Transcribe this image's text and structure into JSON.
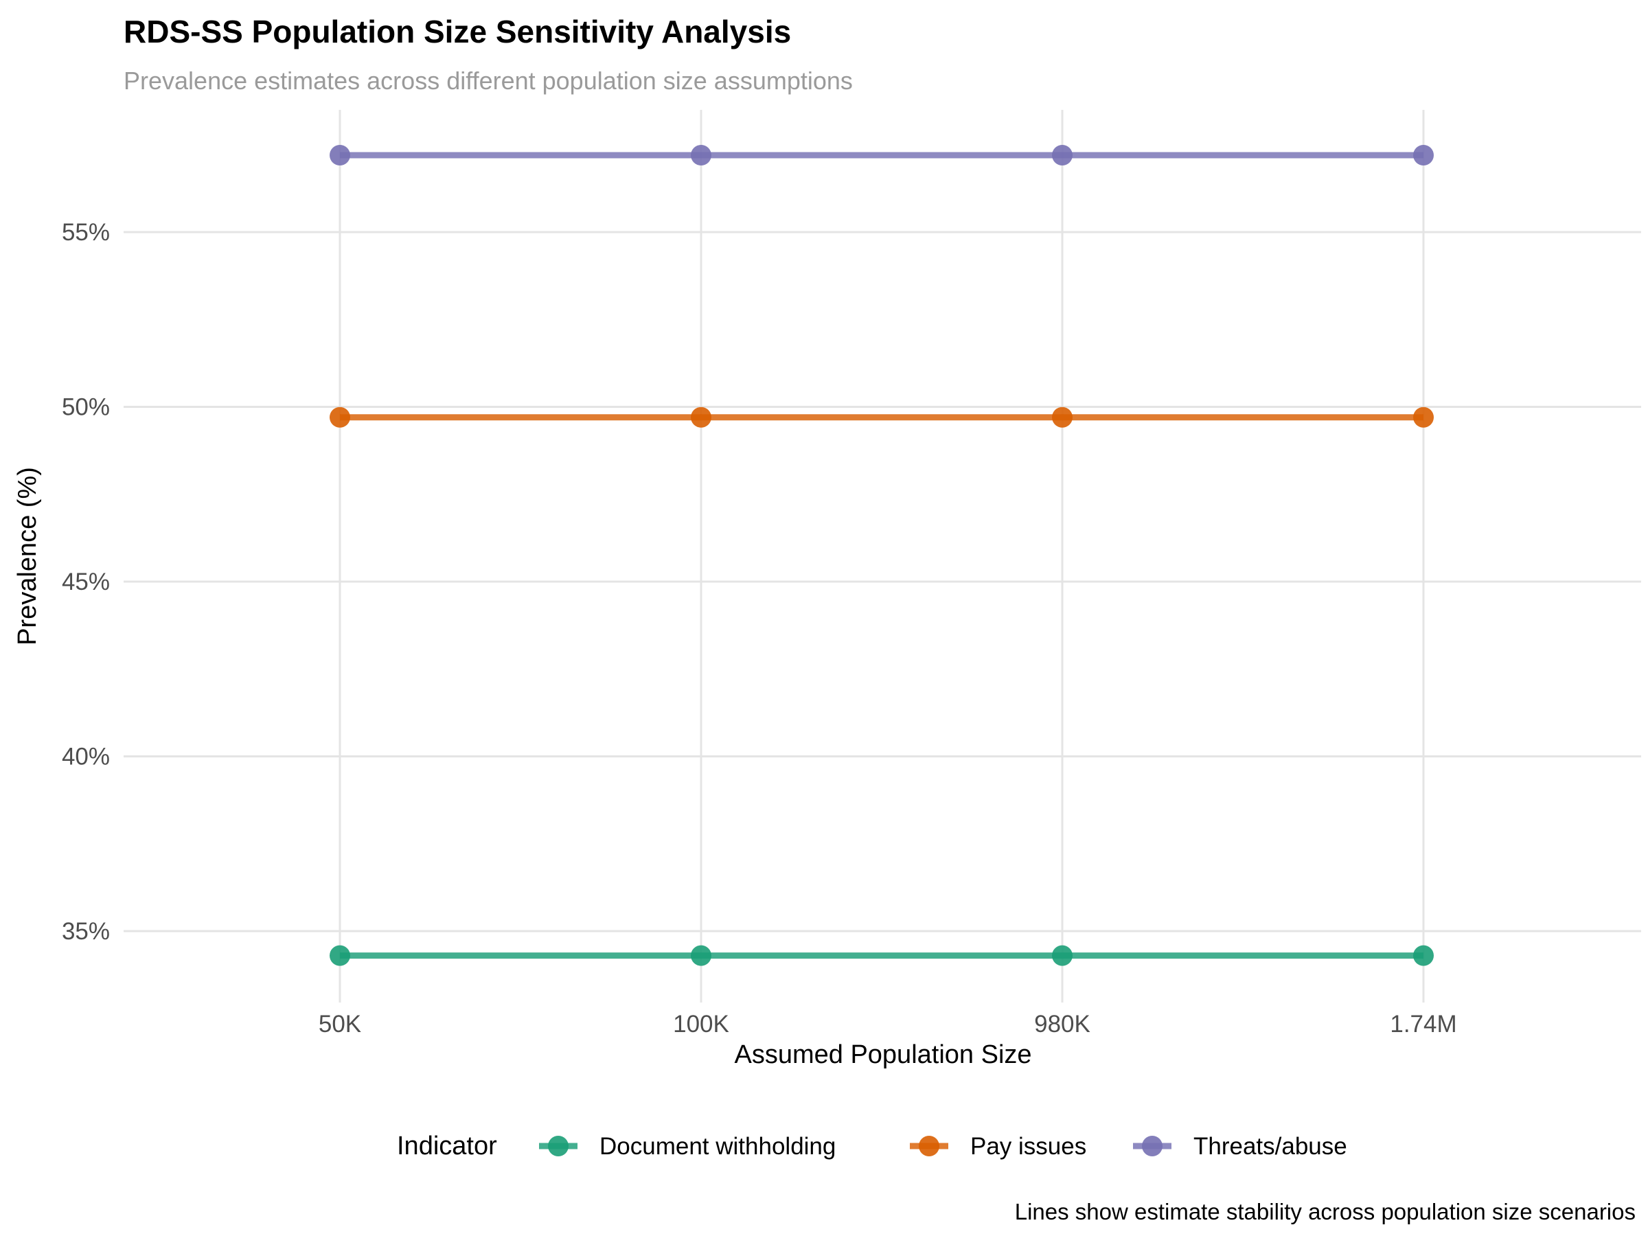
{
  "chart_data": {
    "type": "line",
    "title": "RDS-SS Population Size Sensitivity Analysis",
    "subtitle": "Prevalence estimates across different population size assumptions",
    "xlabel": "Assumed Population Size",
    "ylabel": "Prevalence (%)",
    "categories": [
      "50K",
      "100K",
      "980K",
      "1.74M"
    ],
    "y_ticks": [
      35,
      40,
      45,
      50,
      55
    ],
    "y_tick_labels": [
      "35%",
      "40%",
      "45%",
      "50%",
      "55%"
    ],
    "ylim": [
      32.5,
      58.4
    ],
    "grid": true,
    "legend_title": "Indicator",
    "legend_position": "bottom",
    "series": [
      {
        "name": "Document withholding",
        "color": "#1b9e77",
        "values": [
          34.3,
          34.3,
          34.3,
          34.3
        ]
      },
      {
        "name": "Pay issues",
        "color": "#d95f02",
        "values": [
          49.7,
          49.7,
          49.7,
          49.7
        ]
      },
      {
        "name": "Threats/abuse",
        "color": "#7570b3",
        "values": [
          57.2,
          57.2,
          57.2,
          57.2
        ]
      }
    ],
    "caption": "Lines show estimate stability across population size scenarios"
  }
}
